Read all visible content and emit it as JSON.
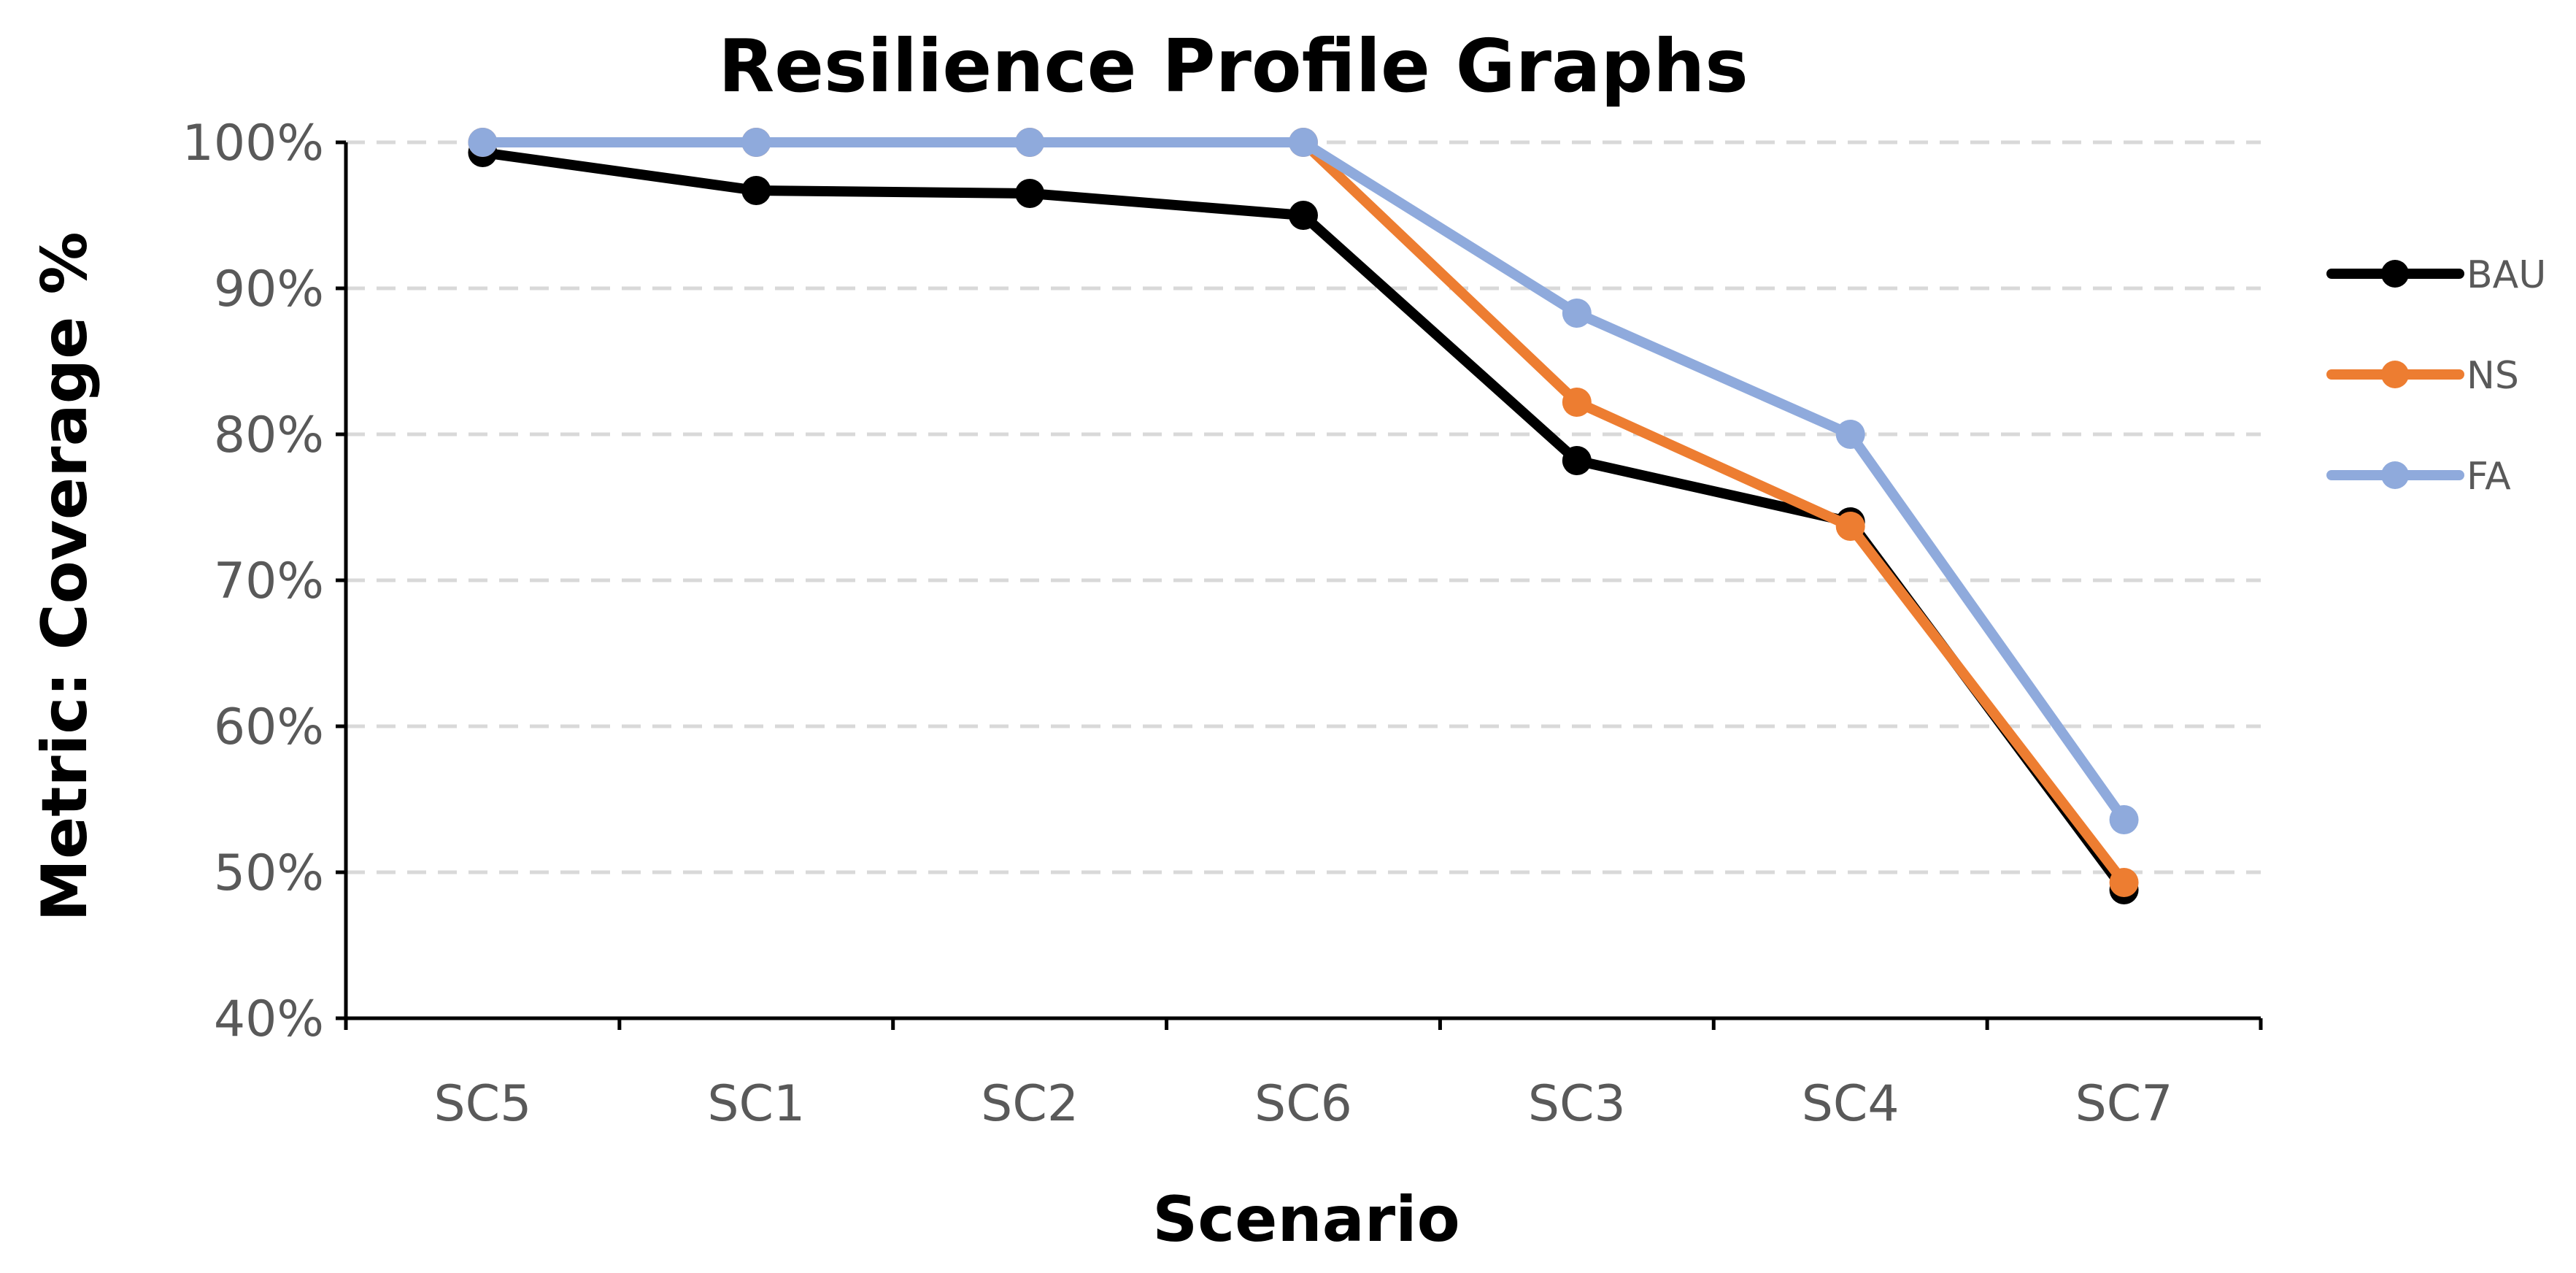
{
  "chart_data": {
    "type": "line",
    "title": "Resilience Profile Graphs",
    "xlabel": "Scenario",
    "ylabel": "Metric: Coverage %",
    "categories": [
      "SC5",
      "SC1",
      "SC2",
      "SC6",
      "SC3",
      "SC4",
      "SC7"
    ],
    "ylim": [
      40,
      100
    ],
    "yticks": [
      40,
      50,
      60,
      70,
      80,
      90,
      100
    ],
    "ytick_labels": [
      "40%",
      "50%",
      "60%",
      "70%",
      "80%",
      "90%",
      "100%"
    ],
    "grid": "horizontal-dashed",
    "legend_position": "right",
    "series": [
      {
        "name": "BAU",
        "color": "#000000",
        "values": [
          99.3,
          96.7,
          96.5,
          95.0,
          78.2,
          74.0,
          48.8
        ]
      },
      {
        "name": "NS",
        "color": "#ED7D31",
        "values": [
          100,
          100,
          100,
          100,
          82.2,
          73.7,
          49.3
        ]
      },
      {
        "name": "FA",
        "color": "#8FAADC",
        "values": [
          100,
          100,
          100,
          100,
          88.3,
          80.0,
          53.6
        ]
      }
    ]
  }
}
